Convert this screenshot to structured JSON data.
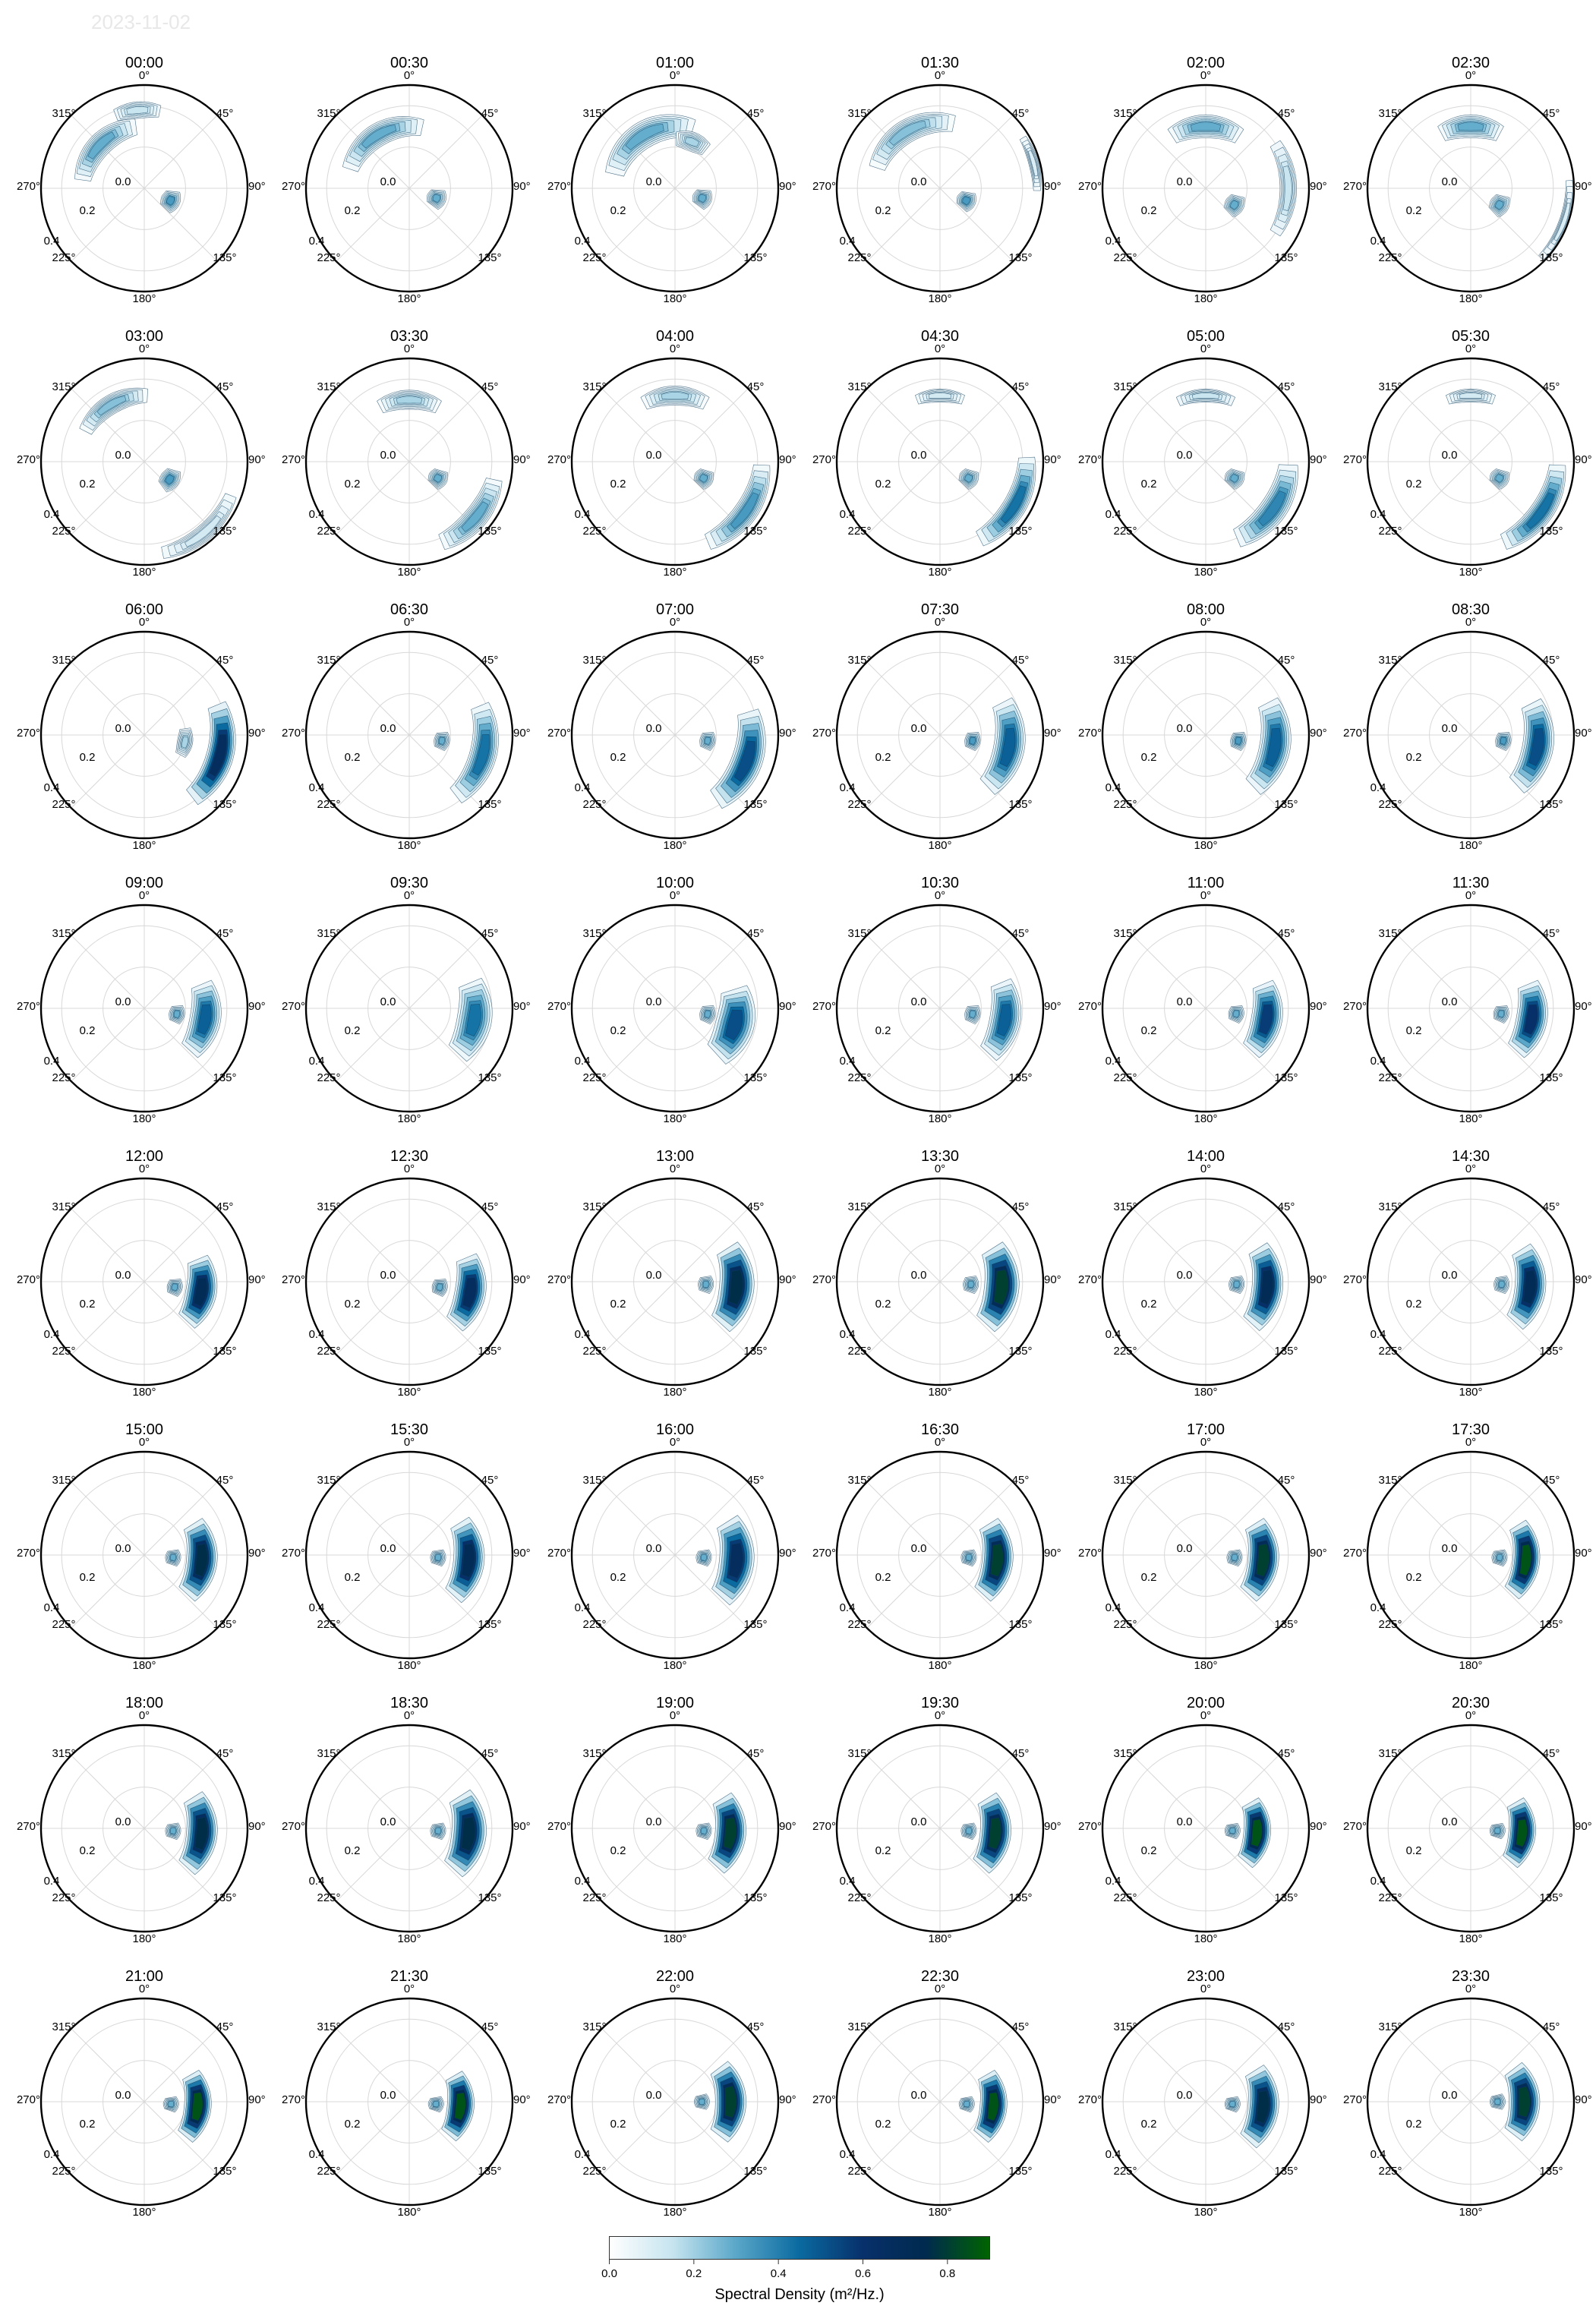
{
  "header": {
    "date": "2023-11-02"
  },
  "axes": {
    "direction_labels": [
      "0°",
      "45°",
      "90°",
      "135°",
      "180°",
      "225°",
      "270°",
      "315°"
    ],
    "radial_labels": [
      "0.0",
      "0.2",
      "0.4"
    ]
  },
  "chart_data": {
    "type": "heatmap",
    "subtype": "polar directional wave spectrum contours",
    "panel_titles": [
      "00:00",
      "00:30",
      "01:00",
      "01:30",
      "02:00",
      "02:30",
      "03:00",
      "03:30",
      "04:00",
      "04:30",
      "05:00",
      "05:30",
      "06:00",
      "06:30",
      "07:00",
      "07:30",
      "08:00",
      "08:30",
      "09:00",
      "09:30",
      "10:00",
      "10:30",
      "11:00",
      "11:30",
      "12:00",
      "12:30",
      "13:00",
      "13:30",
      "14:00",
      "14:30",
      "15:00",
      "15:30",
      "16:00",
      "16:30",
      "17:00",
      "17:30",
      "18:00",
      "18:30",
      "19:00",
      "19:30",
      "20:00",
      "20:30",
      "21:00",
      "21:30",
      "22:00",
      "22:30",
      "23:00",
      "23:30"
    ],
    "theta_direction": "clockwise",
    "theta_zero": "north",
    "radial_range": [
      0.0,
      0.5
    ],
    "grid": true,
    "colorbar": {
      "label": "Spectral Density (m²/Hz.)",
      "ticks": [
        "0.0",
        "0.2",
        "0.4",
        "0.6",
        "0.8"
      ],
      "range": [
        0.0,
        0.9
      ],
      "colormap": [
        "#ffffff",
        "#c6e4ef",
        "#5aa7c9",
        "#0a6aa0",
        "#08306b",
        "#002a4e",
        "#006400"
      ]
    },
    "blobs": [
      [
        {
          "dir": 315,
          "len": 80,
          "freq": 0.3,
          "w": 0.06,
          "peak": 0.3
        },
        {
          "dir": 355,
          "len": 40,
          "freq": 0.38,
          "w": 0.05,
          "peak": 0.15
        },
        {
          "dir": 115,
          "len": 40,
          "freq": 0.14,
          "w": 0.05,
          "peak": 0.35
        }
      ],
      [
        {
          "dir": 330,
          "len": 90,
          "freq": 0.3,
          "w": 0.06,
          "peak": 0.3
        },
        {
          "dir": 110,
          "len": 35,
          "freq": 0.14,
          "w": 0.05,
          "peak": 0.3
        }
      ],
      [
        {
          "dir": 330,
          "len": 100,
          "freq": 0.3,
          "w": 0.07,
          "peak": 0.3
        },
        {
          "dir": 20,
          "len": 40,
          "freq": 0.24,
          "w": 0.05,
          "peak": 0.2
        },
        {
          "dir": 110,
          "len": 35,
          "freq": 0.14,
          "w": 0.05,
          "peak": 0.3
        }
      ],
      [
        {
          "dir": 330,
          "len": 90,
          "freq": 0.32,
          "w": 0.06,
          "peak": 0.25
        },
        {
          "dir": 75,
          "len": 40,
          "freq": 0.47,
          "w": 0.03,
          "peak": 0.1
        },
        {
          "dir": 115,
          "len": 35,
          "freq": 0.14,
          "w": 0.05,
          "peak": 0.35
        }
      ],
      [
        {
          "dir": 0,
          "len": 70,
          "freq": 0.3,
          "w": 0.06,
          "peak": 0.3
        },
        {
          "dir": 90,
          "len": 80,
          "freq": 0.4,
          "w": 0.05,
          "peak": 0.15
        },
        {
          "dir": 120,
          "len": 35,
          "freq": 0.16,
          "w": 0.05,
          "peak": 0.3
        }
      ],
      [
        {
          "dir": 0,
          "len": 60,
          "freq": 0.3,
          "w": 0.06,
          "peak": 0.3
        },
        {
          "dir": 110,
          "len": 60,
          "freq": 0.48,
          "w": 0.03,
          "peak": 0.1
        },
        {
          "dir": 120,
          "len": 35,
          "freq": 0.16,
          "w": 0.05,
          "peak": 0.3
        }
      ],
      [
        {
          "dir": 330,
          "len": 70,
          "freq": 0.32,
          "w": 0.05,
          "peak": 0.25
        },
        {
          "dir": 140,
          "len": 70,
          "freq": 0.45,
          "w": 0.05,
          "peak": 0.12
        },
        {
          "dir": 125,
          "len": 40,
          "freq": 0.15,
          "w": 0.05,
          "peak": 0.35
        }
      ],
      [
        {
          "dir": 0,
          "len": 60,
          "freq": 0.3,
          "w": 0.05,
          "peak": 0.2
        },
        {
          "dir": 130,
          "len": 60,
          "freq": 0.42,
          "w": 0.06,
          "peak": 0.3
        },
        {
          "dir": 120,
          "len": 30,
          "freq": 0.16,
          "w": 0.05,
          "peak": 0.3
        }
      ],
      [
        {
          "dir": 0,
          "len": 60,
          "freq": 0.32,
          "w": 0.05,
          "peak": 0.2
        },
        {
          "dir": 125,
          "len": 70,
          "freq": 0.42,
          "w": 0.06,
          "peak": 0.35
        },
        {
          "dir": 120,
          "len": 30,
          "freq": 0.16,
          "w": 0.05,
          "peak": 0.3
        }
      ],
      [
        {
          "dir": 0,
          "len": 50,
          "freq": 0.32,
          "w": 0.04,
          "peak": 0.12
        },
        {
          "dir": 120,
          "len": 70,
          "freq": 0.42,
          "w": 0.06,
          "peak": 0.45
        },
        {
          "dir": 120,
          "len": 30,
          "freq": 0.16,
          "w": 0.05,
          "peak": 0.3
        }
      ],
      [
        {
          "dir": 0,
          "len": 60,
          "freq": 0.32,
          "w": 0.04,
          "peak": 0.15
        },
        {
          "dir": 125,
          "len": 70,
          "freq": 0.4,
          "w": 0.07,
          "peak": 0.4
        },
        {
          "dir": 120,
          "len": 30,
          "freq": 0.16,
          "w": 0.05,
          "peak": 0.3
        }
      ],
      [
        {
          "dir": 0,
          "len": 50,
          "freq": 0.32,
          "w": 0.04,
          "peak": 0.12
        },
        {
          "dir": 125,
          "len": 70,
          "freq": 0.42,
          "w": 0.06,
          "peak": 0.45
        },
        {
          "dir": 120,
          "len": 30,
          "freq": 0.16,
          "w": 0.05,
          "peak": 0.3
        }
      ],
      [
        {
          "dir": 105,
          "len": 80,
          "freq": 0.38,
          "w": 0.07,
          "peak": 0.7
        },
        {
          "dir": 100,
          "len": 40,
          "freq": 0.2,
          "w": 0.04,
          "peak": 0.2
        }
      ],
      [
        {
          "dir": 105,
          "len": 80,
          "freq": 0.37,
          "w": 0.07,
          "peak": 0.45
        },
        {
          "dir": 100,
          "len": 30,
          "freq": 0.16,
          "w": 0.04,
          "peak": 0.3
        }
      ],
      [
        {
          "dir": 110,
          "len": 80,
          "freq": 0.37,
          "w": 0.08,
          "peak": 0.55
        },
        {
          "dir": 100,
          "len": 30,
          "freq": 0.16,
          "w": 0.04,
          "peak": 0.3
        }
      ],
      [
        {
          "dir": 100,
          "len": 80,
          "freq": 0.34,
          "w": 0.08,
          "peak": 0.5
        },
        {
          "dir": 100,
          "len": 30,
          "freq": 0.16,
          "w": 0.04,
          "peak": 0.35
        }
      ],
      [
        {
          "dir": 100,
          "len": 80,
          "freq": 0.34,
          "w": 0.08,
          "peak": 0.5
        },
        {
          "dir": 100,
          "len": 30,
          "freq": 0.16,
          "w": 0.04,
          "peak": 0.35
        }
      ],
      [
        {
          "dir": 100,
          "len": 80,
          "freq": 0.33,
          "w": 0.08,
          "peak": 0.55
        },
        {
          "dir": 100,
          "len": 30,
          "freq": 0.16,
          "w": 0.04,
          "peak": 0.35
        }
      ],
      [
        {
          "dir": 100,
          "len": 70,
          "freq": 0.3,
          "w": 0.08,
          "peak": 0.5
        },
        {
          "dir": 100,
          "len": 30,
          "freq": 0.16,
          "w": 0.04,
          "peak": 0.3
        }
      ],
      [
        {
          "dir": 100,
          "len": 70,
          "freq": 0.32,
          "w": 0.09,
          "peak": 0.45
        }
      ],
      [
        {
          "dir": 105,
          "len": 70,
          "freq": 0.3,
          "w": 0.1,
          "peak": 0.55
        },
        {
          "dir": 100,
          "len": 30,
          "freq": 0.16,
          "w": 0.04,
          "peak": 0.3
        }
      ],
      [
        {
          "dir": 100,
          "len": 70,
          "freq": 0.32,
          "w": 0.08,
          "peak": 0.5
        },
        {
          "dir": 100,
          "len": 30,
          "freq": 0.16,
          "w": 0.04,
          "peak": 0.3
        }
      ],
      [
        {
          "dir": 100,
          "len": 70,
          "freq": 0.3,
          "w": 0.08,
          "peak": 0.6
        },
        {
          "dir": 100,
          "len": 30,
          "freq": 0.15,
          "w": 0.04,
          "peak": 0.3
        }
      ],
      [
        {
          "dir": 100,
          "len": 70,
          "freq": 0.3,
          "w": 0.08,
          "peak": 0.65
        },
        {
          "dir": 100,
          "len": 30,
          "freq": 0.15,
          "w": 0.04,
          "peak": 0.3
        }
      ],
      [
        {
          "dir": 100,
          "len": 70,
          "freq": 0.28,
          "w": 0.08,
          "peak": 0.75
        },
        {
          "dir": 100,
          "len": 30,
          "freq": 0.15,
          "w": 0.04,
          "peak": 0.3
        }
      ],
      [
        {
          "dir": 100,
          "len": 70,
          "freq": 0.3,
          "w": 0.08,
          "peak": 0.7
        },
        {
          "dir": 100,
          "len": 30,
          "freq": 0.15,
          "w": 0.04,
          "peak": 0.3
        }
      ],
      [
        {
          "dir": 95,
          "len": 80,
          "freq": 0.3,
          "w": 0.09,
          "peak": 0.8
        },
        {
          "dir": 95,
          "len": 30,
          "freq": 0.15,
          "w": 0.04,
          "peak": 0.3
        }
      ],
      [
        {
          "dir": 95,
          "len": 80,
          "freq": 0.3,
          "w": 0.09,
          "peak": 0.85
        },
        {
          "dir": 95,
          "len": 30,
          "freq": 0.15,
          "w": 0.04,
          "peak": 0.3
        }
      ],
      [
        {
          "dir": 95,
          "len": 80,
          "freq": 0.3,
          "w": 0.08,
          "peak": 0.75
        },
        {
          "dir": 95,
          "len": 30,
          "freq": 0.15,
          "w": 0.04,
          "peak": 0.3
        }
      ],
      [
        {
          "dir": 95,
          "len": 80,
          "freq": 0.29,
          "w": 0.08,
          "peak": 0.75
        },
        {
          "dir": 95,
          "len": 30,
          "freq": 0.15,
          "w": 0.04,
          "peak": 0.3
        }
      ],
      [
        {
          "dir": 95,
          "len": 80,
          "freq": 0.28,
          "w": 0.08,
          "peak": 0.8
        },
        {
          "dir": 95,
          "len": 30,
          "freq": 0.14,
          "w": 0.04,
          "peak": 0.3
        }
      ],
      [
        {
          "dir": 95,
          "len": 80,
          "freq": 0.29,
          "w": 0.08,
          "peak": 0.75
        },
        {
          "dir": 95,
          "len": 30,
          "freq": 0.14,
          "w": 0.04,
          "peak": 0.3
        }
      ],
      [
        {
          "dir": 95,
          "len": 80,
          "freq": 0.3,
          "w": 0.09,
          "peak": 0.7
        },
        {
          "dir": 95,
          "len": 30,
          "freq": 0.14,
          "w": 0.04,
          "peak": 0.3
        }
      ],
      [
        {
          "dir": 95,
          "len": 80,
          "freq": 0.28,
          "w": 0.08,
          "peak": 0.85
        },
        {
          "dir": 95,
          "len": 30,
          "freq": 0.14,
          "w": 0.04,
          "peak": 0.3
        }
      ],
      [
        {
          "dir": 95,
          "len": 80,
          "freq": 0.28,
          "w": 0.08,
          "peak": 0.85
        },
        {
          "dir": 95,
          "len": 30,
          "freq": 0.14,
          "w": 0.04,
          "peak": 0.3
        }
      ],
      [
        {
          "dir": 95,
          "len": 80,
          "freq": 0.27,
          "w": 0.07,
          "peak": 0.9
        },
        {
          "dir": 95,
          "len": 30,
          "freq": 0.14,
          "w": 0.04,
          "peak": 0.3
        }
      ],
      [
        {
          "dir": 95,
          "len": 80,
          "freq": 0.28,
          "w": 0.08,
          "peak": 0.8
        },
        {
          "dir": 95,
          "len": 30,
          "freq": 0.14,
          "w": 0.04,
          "peak": 0.3
        }
      ],
      [
        {
          "dir": 95,
          "len": 80,
          "freq": 0.29,
          "w": 0.09,
          "peak": 0.8
        },
        {
          "dir": 95,
          "len": 30,
          "freq": 0.14,
          "w": 0.04,
          "peak": 0.3
        }
      ],
      [
        {
          "dir": 95,
          "len": 80,
          "freq": 0.27,
          "w": 0.08,
          "peak": 0.85
        },
        {
          "dir": 95,
          "len": 30,
          "freq": 0.14,
          "w": 0.04,
          "peak": 0.3
        }
      ],
      [
        {
          "dir": 95,
          "len": 80,
          "freq": 0.27,
          "w": 0.08,
          "peak": 0.85
        },
        {
          "dir": 95,
          "len": 30,
          "freq": 0.14,
          "w": 0.04,
          "peak": 0.3
        }
      ],
      [
        {
          "dir": 95,
          "len": 75,
          "freq": 0.25,
          "w": 0.07,
          "peak": 0.9
        },
        {
          "dir": 95,
          "len": 30,
          "freq": 0.13,
          "w": 0.04,
          "peak": 0.3
        }
      ],
      [
        {
          "dir": 95,
          "len": 75,
          "freq": 0.25,
          "w": 0.07,
          "peak": 0.9
        },
        {
          "dir": 95,
          "len": 30,
          "freq": 0.13,
          "w": 0.04,
          "peak": 0.3
        }
      ],
      [
        {
          "dir": 95,
          "len": 75,
          "freq": 0.26,
          "w": 0.07,
          "peak": 0.9
        },
        {
          "dir": 95,
          "len": 30,
          "freq": 0.13,
          "w": 0.04,
          "peak": 0.3
        }
      ],
      [
        {
          "dir": 95,
          "len": 75,
          "freq": 0.25,
          "w": 0.07,
          "peak": 0.9
        },
        {
          "dir": 95,
          "len": 30,
          "freq": 0.13,
          "w": 0.04,
          "peak": 0.3
        }
      ],
      [
        {
          "dir": 90,
          "len": 80,
          "freq": 0.27,
          "w": 0.08,
          "peak": 0.85
        },
        {
          "dir": 90,
          "len": 30,
          "freq": 0.13,
          "w": 0.04,
          "peak": 0.3
        }
      ],
      [
        {
          "dir": 95,
          "len": 75,
          "freq": 0.26,
          "w": 0.07,
          "peak": 0.9
        },
        {
          "dir": 95,
          "len": 30,
          "freq": 0.13,
          "w": 0.04,
          "peak": 0.3
        }
      ],
      [
        {
          "dir": 95,
          "len": 80,
          "freq": 0.28,
          "w": 0.08,
          "peak": 0.8
        },
        {
          "dir": 95,
          "len": 30,
          "freq": 0.13,
          "w": 0.04,
          "peak": 0.3
        }
      ],
      [
        {
          "dir": 90,
          "len": 80,
          "freq": 0.26,
          "w": 0.08,
          "peak": 0.85
        },
        {
          "dir": 90,
          "len": 30,
          "freq": 0.13,
          "w": 0.04,
          "peak": 0.3
        }
      ]
    ]
  }
}
